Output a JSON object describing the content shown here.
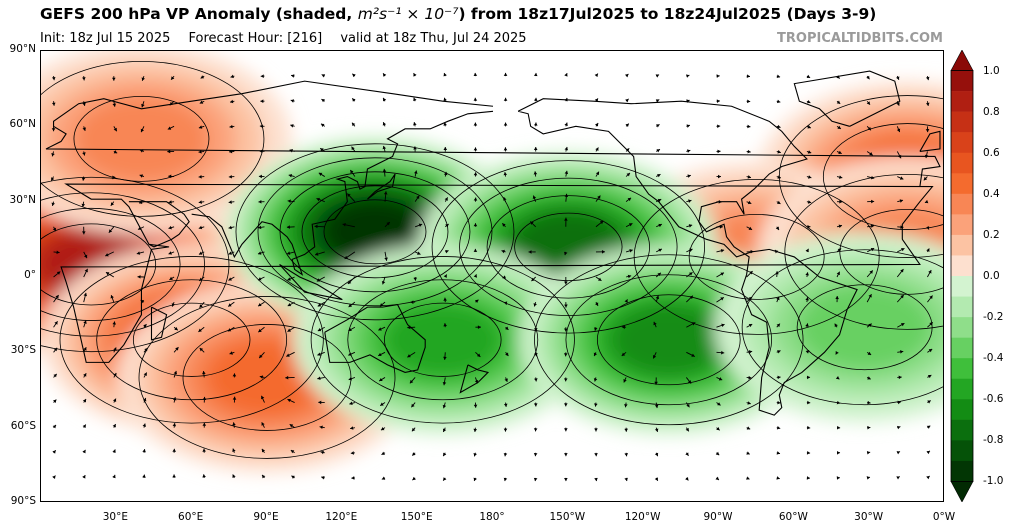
{
  "header": {
    "title_main": "GEFS 200 hPa VP Anomaly (shaded, ",
    "title_unit": "m²s⁻¹ × 10⁻⁷",
    "title_rest": ") from 18z17Jul2025 to 18z24Jul2025 (Days 3-9)",
    "init": "Init: 18z Jul 15 2025",
    "forecast_hour": "Forecast Hour: [216]",
    "valid": "valid at 18z Thu, Jul 24 2025",
    "credit": "TROPICALTIDBITS.COM"
  },
  "axes": {
    "lat_labels": [
      "90°N",
      "60°N",
      "30°N",
      "0°",
      "30°S",
      "60°S",
      "90°S"
    ],
    "lat_values": [
      90,
      60,
      30,
      0,
      -30,
      -60,
      -90
    ],
    "lon_labels": [
      "30°E",
      "60°E",
      "90°E",
      "120°E",
      "150°E",
      "180°",
      "150°W",
      "120°W",
      "90°W",
      "60°W",
      "30°W",
      "0°W"
    ],
    "lon_values": [
      30,
      60,
      90,
      120,
      150,
      180,
      210,
      240,
      270,
      300,
      330,
      360
    ]
  },
  "colorbar": {
    "labels": [
      "1.0",
      "0.8",
      "0.6",
      "0.4",
      "0.2",
      "0.0",
      "-0.2",
      "-0.4",
      "-0.6",
      "-0.8",
      "-1.0"
    ],
    "values": [
      1.0,
      0.8,
      0.6,
      0.4,
      0.2,
      0.0,
      -0.2,
      -0.4,
      -0.6,
      -0.8,
      -1.0
    ],
    "colors_positive": [
      "#fde0cf",
      "#fcc3a3",
      "#fba27a",
      "#f88655",
      "#f46b2e",
      "#e85520",
      "#d9421a",
      "#c63015",
      "#b01f12",
      "#96100c"
    ],
    "colors_negative": [
      "#d3f3d0",
      "#b3eab0",
      "#8fde8a",
      "#67d062",
      "#3fbf3b",
      "#23a623",
      "#138c14",
      "#0b6f0e",
      "#055208",
      "#023604"
    ],
    "extend_top_color": "#8a0a08",
    "extend_bottom_color": "#022a03"
  },
  "chart_data": {
    "type": "heatmap",
    "variable": "200 hPa velocity potential anomaly",
    "units": "m²s⁻¹ × 10⁻⁷",
    "projection": "equirectangular, 0°E to 360°E, 90°S to 90°N",
    "anomaly_centers": [
      {
        "name": "Africa / Indian Ocean positive",
        "lon": 20,
        "lat": 5,
        "value": 0.85
      },
      {
        "name": "South Indian Ocean positive",
        "lon": 60,
        "lat": -25,
        "value": 0.55
      },
      {
        "name": "Australia / S Indian positive",
        "lon": 90,
        "lat": -40,
        "value": 0.5
      },
      {
        "name": "Siberia / Europe positive",
        "lon": 40,
        "lat": 55,
        "value": 0.4
      },
      {
        "name": "North Atlantic / Europe positive",
        "lon": 345,
        "lat": 40,
        "value": 0.45
      },
      {
        "name": "Caribbean positive",
        "lon": 285,
        "lat": 8,
        "value": 0.4
      },
      {
        "name": "Equatorial Atlantic positive",
        "lon": 345,
        "lat": 10,
        "value": 0.4
      },
      {
        "name": "Western North Pacific negative",
        "lon": 133,
        "lat": 18,
        "value": -1.0
      },
      {
        "name": "Central Pacific negative",
        "lon": 210,
        "lat": 12,
        "value": -0.75
      },
      {
        "name": "Southwest Pacific negative",
        "lon": 160,
        "lat": -25,
        "value": -0.6
      },
      {
        "name": "Southeast Pacific negative",
        "lon": 250,
        "lat": -25,
        "value": -0.7
      },
      {
        "name": "South Atlantic negative",
        "lon": 328,
        "lat": -20,
        "value": -0.4
      }
    ]
  }
}
